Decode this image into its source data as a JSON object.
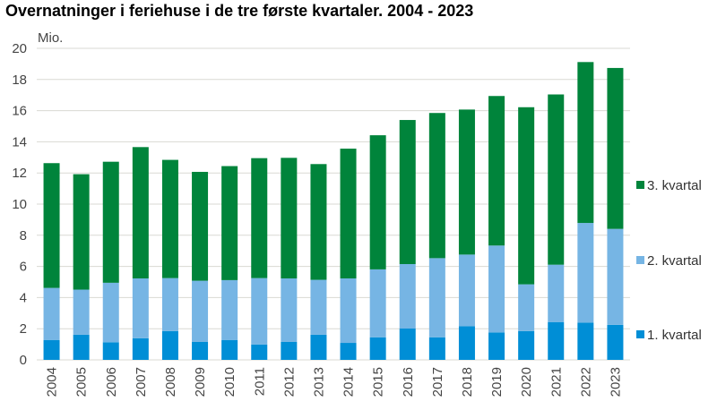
{
  "chart_data": {
    "type": "bar",
    "stacked": true,
    "title": "Overnatninger i feriehuse i de tre første kvartaler. 2004 - 2023",
    "ylabel": "Mio.",
    "xlabel": "",
    "ylim": [
      0,
      20
    ],
    "yticks": [
      0,
      2,
      4,
      6,
      8,
      10,
      12,
      14,
      16,
      18,
      20
    ],
    "grid": true,
    "legend_position": "right",
    "categories": [
      "2004",
      "2005",
      "2006",
      "2007",
      "2008",
      "2009",
      "2010",
      "2011",
      "2012",
      "2013",
      "2014",
      "2015",
      "2016",
      "2017",
      "2018",
      "2019",
      "2020",
      "2021",
      "2022",
      "2023"
    ],
    "series": [
      {
        "name": "1. kvartal",
        "color": "#008ed6",
        "values": [
          1.28,
          1.62,
          1.13,
          1.39,
          1.85,
          1.15,
          1.28,
          0.99,
          1.15,
          1.62,
          1.09,
          1.45,
          2.01,
          1.45,
          2.16,
          1.76,
          1.85,
          2.43,
          2.39,
          2.25
        ]
      },
      {
        "name": "2. kvartal",
        "color": "#76b5e4",
        "values": [
          3.34,
          2.89,
          3.82,
          3.84,
          3.4,
          3.93,
          3.84,
          4.26,
          4.08,
          3.52,
          4.14,
          4.36,
          4.14,
          5.08,
          4.6,
          5.58,
          3.0,
          3.68,
          6.4,
          6.16
        ]
      },
      {
        "name": "3. kvartal",
        "color": "#00843b",
        "values": [
          8.01,
          7.41,
          7.77,
          8.43,
          7.59,
          6.99,
          7.32,
          7.7,
          7.74,
          7.43,
          8.33,
          8.61,
          9.25,
          9.32,
          9.31,
          9.6,
          11.37,
          10.93,
          10.33,
          10.33
        ]
      }
    ]
  }
}
